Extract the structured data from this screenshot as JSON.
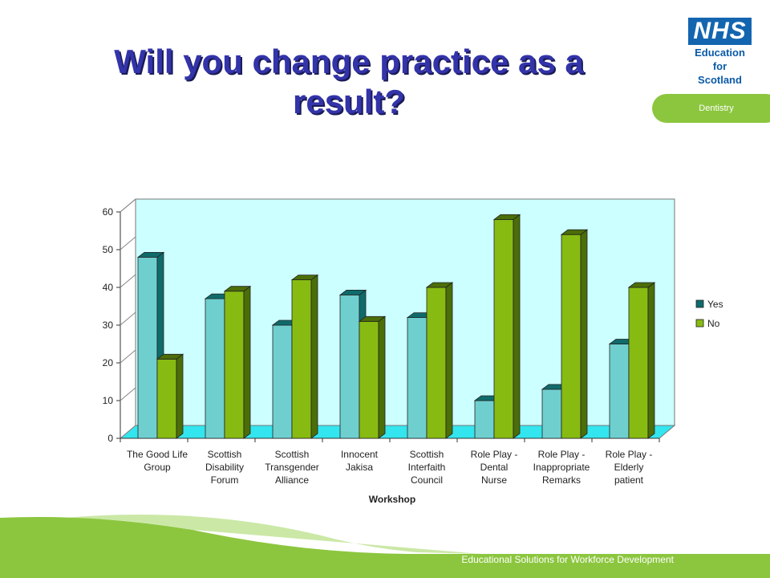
{
  "slide": {
    "title_line1": "Will you change practice as a",
    "title_line2": "result?",
    "logo": {
      "nhs": "NHS",
      "line1": "Education",
      "line2": "for",
      "line3": "Scotland"
    },
    "section_label": "Dentistry",
    "footer": "Educational Solutions for Workforce Development"
  },
  "colors": {
    "title": "#3333aa",
    "yes_front": "#6fcfcf",
    "yes_side": "#0f6b6b",
    "no_front": "#88bb11",
    "no_side": "#4b6e08",
    "plot_wall": "#ccffff",
    "plot_floor": "#33e5ee",
    "brand_green": "#8cc63f",
    "brand_blue": "#1465b0"
  },
  "chart_data": {
    "type": "bar",
    "categories": [
      [
        "The Good Life",
        "Group"
      ],
      [
        "Scottish",
        "Disability",
        "Forum"
      ],
      [
        "Scottish",
        "Transgender",
        "Alliance"
      ],
      [
        "Innocent",
        "Jakisa"
      ],
      [
        "Scottish",
        "Interfaith",
        "Council"
      ],
      [
        "Role Play -",
        "Dental",
        "Nurse"
      ],
      [
        "Role Play -",
        "Inappropriate",
        "Remarks"
      ],
      [
        "Role Play -",
        "Elderly",
        "patient"
      ]
    ],
    "series": [
      {
        "name": "Yes",
        "values": [
          48,
          37,
          30,
          38,
          32,
          10,
          13,
          25
        ]
      },
      {
        "name": "No",
        "values": [
          21,
          39,
          42,
          31,
          40,
          58,
          54,
          40
        ]
      }
    ],
    "xlabel": "Workshop",
    "ylabel": "",
    "ylim": [
      0,
      60
    ],
    "yticks": [
      0,
      10,
      20,
      30,
      40,
      50,
      60
    ],
    "legend": "right",
    "grid": false
  }
}
